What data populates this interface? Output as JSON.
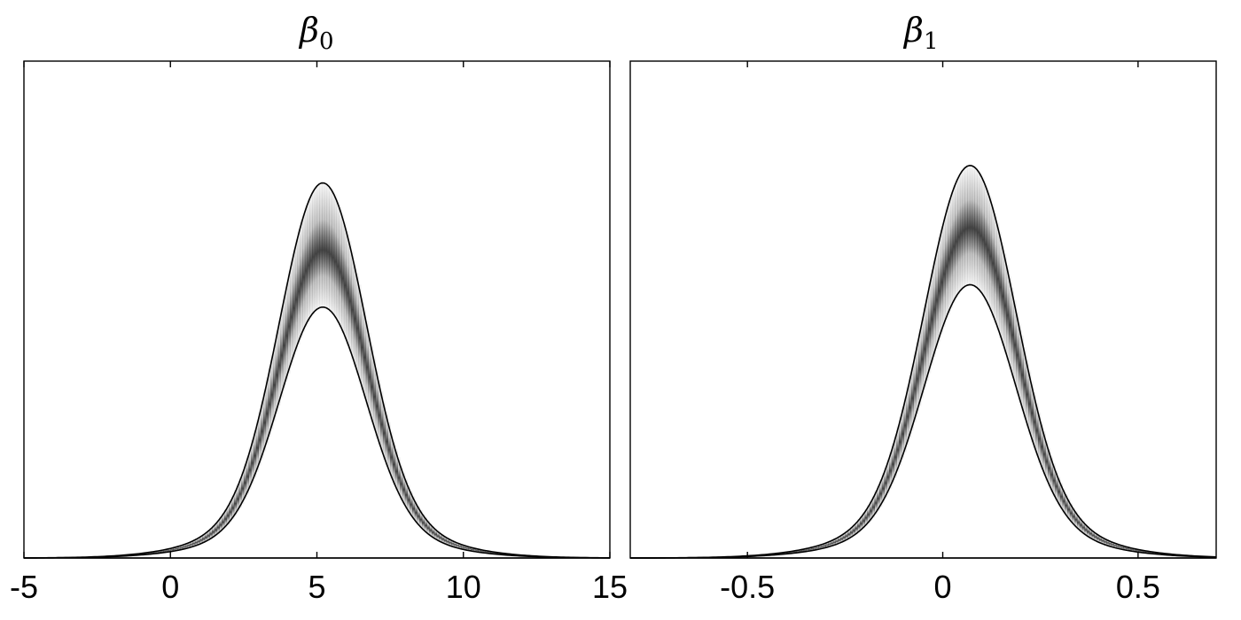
{
  "chart_data": [
    {
      "type": "area",
      "title_symbol": "β",
      "title_subscript": "0",
      "xlabel": "",
      "ylabel": "",
      "xlim": [
        -5,
        15
      ],
      "xticks": [
        -5,
        0,
        5,
        10,
        15
      ],
      "xtick_labels": [
        "-5",
        "0",
        "5",
        "10",
        "15"
      ],
      "ylim": [
        0,
        1.0
      ],
      "grid": false,
      "band": {
        "center": 5.2,
        "sigma": 1.45,
        "upper_peak": 0.755,
        "median_peak": 0.62,
        "lower_peak": 0.505,
        "tail_skew": 0.12
      },
      "fill_color": "#3a3a3a"
    },
    {
      "type": "area",
      "title_symbol": "β",
      "title_subscript": "1",
      "xlabel": "",
      "ylabel": "",
      "xlim": [
        -0.8,
        0.7
      ],
      "xticks": [
        -0.5,
        0,
        0.5
      ],
      "xtick_labels": [
        "-0.5",
        "0",
        "0.5"
      ],
      "ylim": [
        0,
        1.0
      ],
      "grid": false,
      "band": {
        "center": 0.07,
        "sigma": 0.115,
        "upper_peak": 0.79,
        "median_peak": 0.665,
        "lower_peak": 0.55,
        "tail_skew": 0.12
      },
      "fill_color": "#3a3a3a"
    }
  ]
}
